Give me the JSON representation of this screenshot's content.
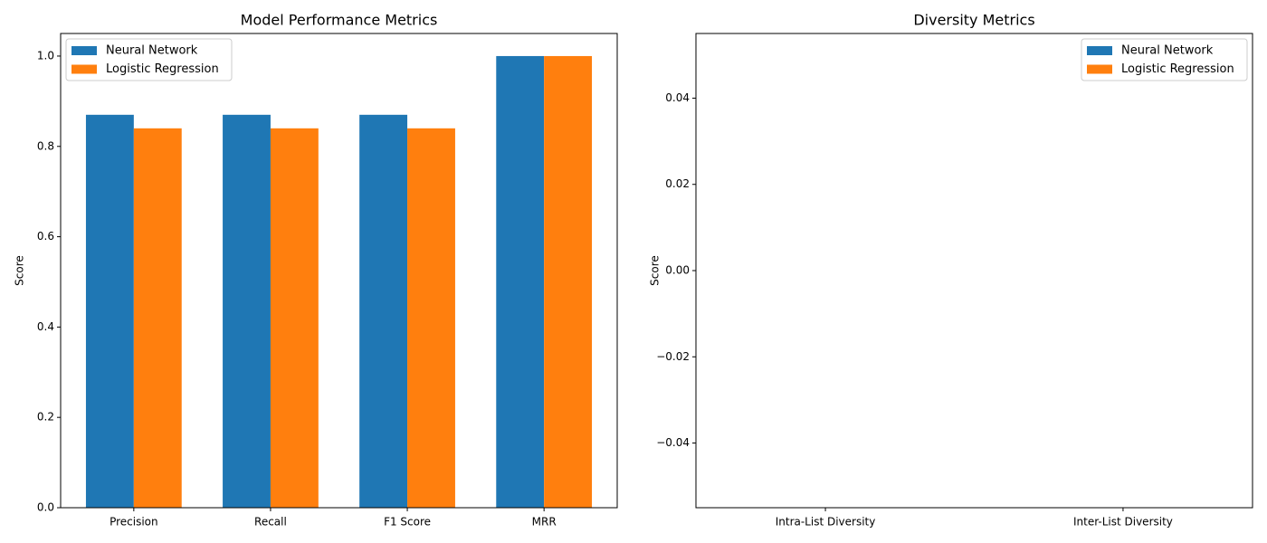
{
  "chart_data": [
    {
      "type": "bar",
      "title": "Model Performance Metrics",
      "y_label": "Score",
      "categories": [
        "Precision",
        "Recall",
        "F1 Score",
        "MRR"
      ],
      "series": [
        {
          "name": "Neural Network",
          "color": "#1f77b4",
          "values": [
            0.87,
            0.87,
            0.87,
            1.0
          ]
        },
        {
          "name": "Logistic Regression",
          "color": "#ff7f0e",
          "values": [
            0.84,
            0.84,
            0.84,
            1.0
          ]
        }
      ],
      "ylim": [
        0,
        1.05
      ],
      "yticks": [
        {
          "value": 0,
          "label": "0.0"
        },
        0.2,
        0.4,
        0.6,
        0.8,
        {
          "value": 1.0,
          "label": "1.0"
        }
      ],
      "legend": "upper left"
    },
    {
      "type": "bar",
      "title": "Diversity Metrics",
      "y_label": "Score",
      "categories": [
        "Intra-List Diversity",
        "Inter-List Diversity"
      ],
      "series": [
        {
          "name": "Neural Network",
          "color": "#1f77b4",
          "values": [
            0,
            0
          ]
        },
        {
          "name": "Logistic Regression",
          "color": "#ff7f0e",
          "values": [
            0,
            0
          ]
        }
      ],
      "ylim": [
        -0.055,
        0.055
      ],
      "yticks": [
        {
          "value": -0.04,
          "label": "−0.04"
        },
        {
          "value": -0.02,
          "label": "−0.02"
        },
        {
          "value": 0,
          "label": "0.00"
        },
        0.02,
        0.04
      ],
      "legend": "upper right"
    }
  ]
}
